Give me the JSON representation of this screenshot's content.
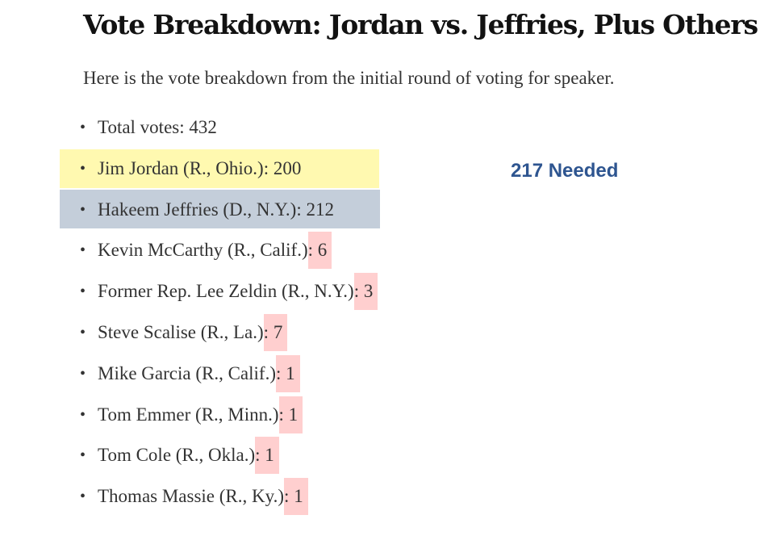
{
  "article": {
    "title": "Vote Breakdown: Jordan vs. Jeffries, Plus Others",
    "intro": "Here is the vote breakdown from the initial round of voting for speaker.",
    "needed_label": "217 Needed",
    "total": {
      "label": "Total votes:",
      "count": "432"
    },
    "candidates": [
      {
        "name": "Jim Jordan (R., Ohio.)",
        "count": "200",
        "highlight": "yellow",
        "highlight_color": "#fff9b0"
      },
      {
        "name": "Hakeem Jeffries (D., N.Y.)",
        "count": "212",
        "highlight": "blue",
        "highlight_color": "#c4ceda"
      },
      {
        "name": "Kevin McCarthy (R., Calif.)",
        "count": "6",
        "highlight": "count",
        "highlight_color": "#ffcfcf"
      },
      {
        "name": "Former Rep. Lee Zeldin (R., N.Y.)",
        "count": "3",
        "highlight": "count",
        "highlight_color": "#ffcfcf"
      },
      {
        "name": "Steve Scalise (R., La.)",
        "count": "7",
        "highlight": "count",
        "highlight_color": "#ffcfcf"
      },
      {
        "name": "Mike Garcia (R., Calif.)",
        "count": "1",
        "highlight": "count",
        "highlight_color": "#ffcfcf"
      },
      {
        "name": "Tom Emmer (R., Minn.)",
        "count": "1",
        "highlight": "count",
        "highlight_color": "#ffcfcf"
      },
      {
        "name": "Tom Cole (R., Okla.)",
        "count": "1",
        "highlight": "count",
        "highlight_color": "#ffcfcf"
      },
      {
        "name": "Thomas Massie (R., Ky.)",
        "count": "1",
        "highlight": "count",
        "highlight_color": "#ffcfcf"
      }
    ],
    "needed_color": "#2e5590"
  }
}
